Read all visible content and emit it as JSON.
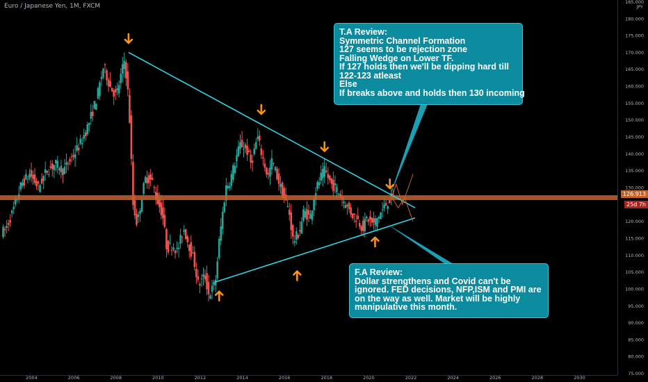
{
  "chart_data": {
    "type": "candlestick",
    "title": "Euro / Japanese Yen, 1M, FXCM",
    "currency_label": "JPY",
    "x_ticks": [
      "2004",
      "2006",
      "2008",
      "2010",
      "2012",
      "2014",
      "2016",
      "2018",
      "2020",
      "2022",
      "2024",
      "2026",
      "2028",
      "2030"
    ],
    "y_ticks": [
      "185.000",
      "180.000",
      "175.000",
      "170.000",
      "165.000",
      "160.000",
      "155.000",
      "150.000",
      "145.000",
      "140.000",
      "135.000",
      "130.000",
      "125.000",
      "120.000",
      "115.000",
      "110.000",
      "105.000",
      "100.000",
      "95.000",
      "90.000",
      "85.000",
      "80.000",
      "75.000"
    ],
    "x_range": [
      2002.5,
      2031.8
    ],
    "y_range": [
      74.5,
      185.5
    ],
    "grid": false,
    "current_price": "126.913",
    "countdown": "25d 7h",
    "horizontal_level": 127,
    "series_close": [
      [
        2002.8,
        117
      ],
      [
        2003.2,
        123
      ],
      [
        2003.6,
        131
      ],
      [
        2004.0,
        134
      ],
      [
        2004.4,
        130
      ],
      [
        2004.8,
        135
      ],
      [
        2005.2,
        137
      ],
      [
        2005.6,
        135
      ],
      [
        2006.0,
        139
      ],
      [
        2006.4,
        143
      ],
      [
        2006.8,
        149
      ],
      [
        2007.2,
        157
      ],
      [
        2007.5,
        166
      ],
      [
        2007.8,
        160
      ],
      [
        2008.1,
        157
      ],
      [
        2008.5,
        168
      ],
      [
        2008.7,
        155
      ],
      [
        2008.9,
        125
      ],
      [
        2009.1,
        119
      ],
      [
        2009.3,
        127
      ],
      [
        2009.5,
        133
      ],
      [
        2009.8,
        132
      ],
      [
        2010.0,
        127
      ],
      [
        2010.3,
        122
      ],
      [
        2010.5,
        112
      ],
      [
        2010.8,
        113
      ],
      [
        2011.0,
        111
      ],
      [
        2011.3,
        118
      ],
      [
        2011.5,
        114
      ],
      [
        2011.8,
        108
      ],
      [
        2012.0,
        101
      ],
      [
        2012.3,
        104
      ],
      [
        2012.5,
        98
      ],
      [
        2012.8,
        102
      ],
      [
        2013.0,
        115
      ],
      [
        2013.3,
        130
      ],
      [
        2013.5,
        132
      ],
      [
        2013.8,
        139
      ],
      [
        2014.0,
        143
      ],
      [
        2014.3,
        141
      ],
      [
        2014.5,
        137
      ],
      [
        2014.8,
        145
      ],
      [
        2015.0,
        140
      ],
      [
        2015.3,
        133
      ],
      [
        2015.5,
        138
      ],
      [
        2015.8,
        132
      ],
      [
        2016.0,
        128
      ],
      [
        2016.3,
        123
      ],
      [
        2016.5,
        114
      ],
      [
        2016.8,
        117
      ],
      [
        2017.0,
        123
      ],
      [
        2017.3,
        121
      ],
      [
        2017.5,
        128
      ],
      [
        2017.8,
        133
      ],
      [
        2018.0,
        135
      ],
      [
        2018.3,
        131
      ],
      [
        2018.5,
        130
      ],
      [
        2018.8,
        127
      ],
      [
        2019.0,
        125
      ],
      [
        2019.3,
        122
      ],
      [
        2019.5,
        121
      ],
      [
        2019.8,
        118
      ],
      [
        2020.0,
        121
      ],
      [
        2020.3,
        119
      ],
      [
        2020.5,
        121
      ],
      [
        2020.8,
        124
      ],
      [
        2021.0,
        126
      ],
      [
        2021.2,
        127
      ]
    ],
    "trendlines": [
      {
        "from": [
          2008.6,
          170
        ],
        "to": [
          2022.2,
          124
        ]
      },
      {
        "from": [
          2012.7,
          102
        ],
        "to": [
          2022.2,
          121
        ]
      }
    ],
    "arrows_down": [
      [
        2008.6,
        174
      ],
      [
        2014.9,
        153
      ],
      [
        2017.9,
        142
      ],
      [
        2021.0,
        131
      ]
    ],
    "arrows_up": [
      [
        2012.9,
        98
      ],
      [
        2016.6,
        104
      ],
      [
        2020.3,
        114
      ]
    ]
  },
  "ta_review": {
    "lines": [
      "T.A Review:",
      "Symmetric Channel Formation",
      "127 seems to be rejection zone",
      "Falling Wedge on Lower TF.",
      "If 127 holds then we'll be dipping hard till",
      "122-123 atleast",
      "Else",
      "If breaks above and holds then 130 incoming"
    ]
  },
  "fa_review": {
    "heading": "F.A Review:",
    "body": "Dollar strengthens and Covid can't be ignored. FED decisions, NFP,ISM and PMI are on the way as well. Market will be highly manipulative this month."
  },
  "colors": {
    "up": "#26a69a",
    "down": "#ef5350",
    "trendline": "#34d4e6",
    "level": "#c5622b",
    "arrow": "#f7931e",
    "box": "#0c8a9e"
  }
}
